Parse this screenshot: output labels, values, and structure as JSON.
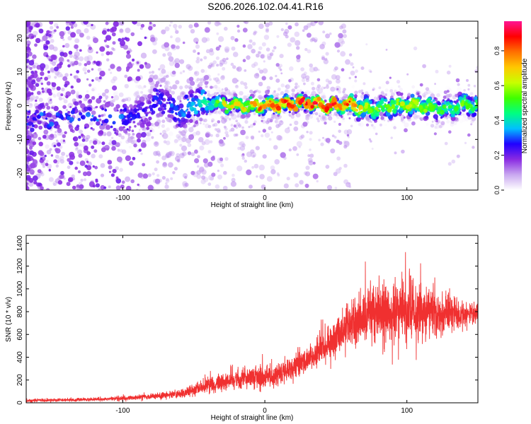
{
  "chart_data": [
    {
      "type": "heatmap",
      "title": "S206.2026.102.04.41.R16",
      "xlabel": "Height of straight line (km)",
      "ylabel": "Frequency (Hz)",
      "xlim": [
        -168,
        150
      ],
      "ylim": [
        -25,
        25
      ],
      "x_ticks": [
        -100,
        0,
        100
      ],
      "y_ticks": [
        -20,
        -10,
        0,
        10,
        20
      ],
      "grid": false,
      "ridge": {
        "x": [
          -100,
          -90,
          -80,
          -75,
          -70,
          -65,
          -60,
          -55,
          -50,
          -45,
          -40,
          -35,
          -30,
          -20,
          -10,
          0,
          10,
          20,
          30,
          40,
          50,
          60,
          70,
          80,
          90,
          100,
          110,
          120,
          130,
          140,
          148
        ],
        "y": [
          -4,
          -3,
          -1,
          2,
          1,
          -1,
          -2,
          -1,
          0,
          1,
          1,
          1,
          0.5,
          0,
          0,
          0,
          0.3,
          0.5,
          1,
          0,
          0,
          0.3,
          -1,
          -1,
          0,
          0,
          0,
          -1,
          -1,
          0.5,
          0
        ],
        "amp": [
          0.3,
          0.25,
          0.25,
          0.3,
          0.25,
          0.3,
          0.3,
          0.35,
          0.35,
          0.4,
          0.4,
          0.5,
          0.6,
          0.7,
          0.75,
          0.8,
          0.85,
          0.85,
          0.85,
          0.85,
          0.85,
          0.8,
          0.6,
          0.55,
          0.6,
          0.6,
          0.6,
          0.5,
          0.45,
          0.55,
          0.5
        ]
      },
      "colorbar": {
        "label": "Normalized spectral amplitude",
        "range": [
          0,
          0.97
        ],
        "ticks": [
          0.0,
          0.2,
          0.4,
          0.6,
          0.8
        ],
        "tick_labels": [
          "0.0",
          "0.2",
          "0.4",
          "0.6",
          "0.8"
        ],
        "colors": [
          "#ffffff",
          "#c9a8f0",
          "#8a2be2",
          "#2000ff",
          "#00c0ff",
          "#00ff80",
          "#40ff00",
          "#c8ff00",
          "#ffc800",
          "#ff7000",
          "#ff0000",
          "#ff1493"
        ]
      }
    },
    {
      "type": "line",
      "xlabel": "Height of straight line (km)",
      "ylabel": "SNR (10 * v/v)",
      "xlim": [
        -168,
        150
      ],
      "ylim": [
        0,
        1470
      ],
      "x_ticks": [
        -100,
        0,
        100
      ],
      "y_ticks": [
        0,
        200,
        400,
        600,
        800,
        1000,
        1200,
        1400
      ],
      "grid": false,
      "line_color": "#f03030",
      "series": [
        {
          "x": [
            -168,
            -140,
            -120,
            -100,
            -80,
            -60,
            -50,
            -40,
            -30,
            -20,
            -10,
            0,
            10,
            20,
            30,
            40,
            50,
            60,
            70,
            80,
            90,
            100,
            110,
            120,
            130,
            140,
            150
          ],
          "mean": [
            20,
            25,
            30,
            40,
            55,
            80,
            110,
            150,
            180,
            200,
            220,
            230,
            250,
            300,
            380,
            470,
            560,
            680,
            760,
            800,
            820,
            840,
            800,
            790,
            780,
            780,
            790
          ],
          "spread": [
            12,
            12,
            14,
            18,
            22,
            30,
            45,
            60,
            70,
            80,
            90,
            90,
            90,
            100,
            110,
            120,
            130,
            180,
            230,
            270,
            270,
            250,
            230,
            200,
            160,
            110,
            80
          ]
        }
      ]
    }
  ]
}
